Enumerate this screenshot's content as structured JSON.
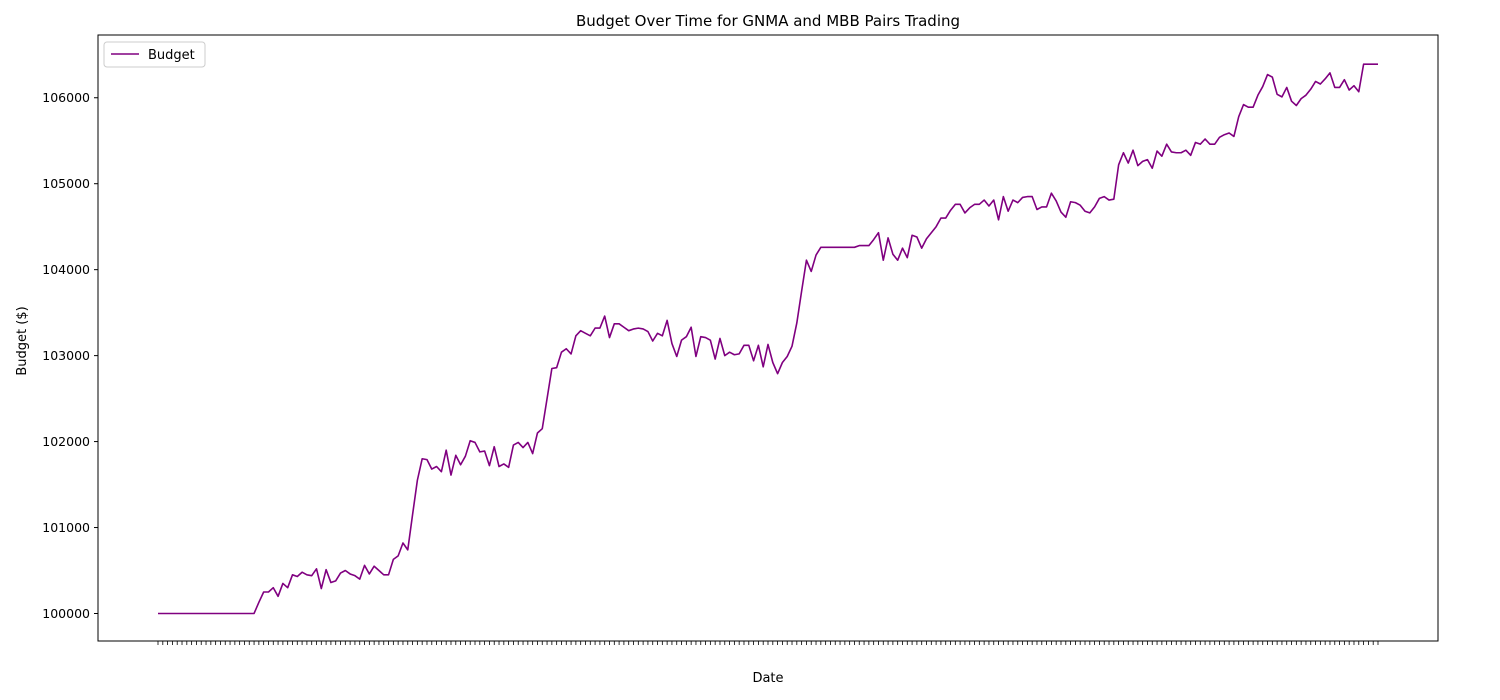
{
  "chart_data": {
    "type": "line",
    "title": "Budget Over Time for GNMA and MBB Pairs Trading",
    "xlabel": "Date",
    "ylabel": "Budget ($)",
    "yticks": [
      100000,
      101000,
      102000,
      103000,
      104000,
      105000,
      106000
    ],
    "ylim": [
      99680,
      106730
    ],
    "grid": false,
    "legend_position": "top-left",
    "series": [
      {
        "name": "Budget",
        "color": "#800080",
        "values": [
          100000,
          100000,
          100000,
          100000,
          100000,
          100000,
          100000,
          100000,
          100000,
          100000,
          100000,
          100000,
          100000,
          100000,
          100000,
          100000,
          100000,
          100000,
          100000,
          100000,
          100000,
          100130,
          100250,
          100250,
          100300,
          100200,
          100350,
          100300,
          100450,
          100430,
          100480,
          100450,
          100440,
          100520,
          100290,
          100510,
          100360,
          100380,
          100470,
          100500,
          100460,
          100440,
          100400,
          100560,
          100460,
          100550,
          100500,
          100450,
          100450,
          100630,
          100670,
          100820,
          100740,
          101150,
          101550,
          101800,
          101790,
          101680,
          101710,
          101650,
          101900,
          101610,
          101840,
          101730,
          101830,
          102010,
          101990,
          101880,
          101890,
          101720,
          101940,
          101710,
          101740,
          101700,
          101960,
          101990,
          101930,
          101990,
          101860,
          102100,
          102150,
          102500,
          102850,
          102860,
          103040,
          103080,
          103020,
          103230,
          103290,
          103260,
          103230,
          103320,
          103320,
          103460,
          103210,
          103370,
          103370,
          103330,
          103290,
          103310,
          103320,
          103310,
          103280,
          103170,
          103260,
          103230,
          103410,
          103140,
          102990,
          103180,
          103220,
          103330,
          102990,
          103220,
          103210,
          103180,
          102960,
          103200,
          103000,
          103040,
          103010,
          103020,
          103120,
          103120,
          102940,
          103120,
          102870,
          103130,
          102920,
          102790,
          102920,
          102990,
          103110,
          103380,
          103750,
          104110,
          103980,
          104170,
          104260,
          104260,
          104260,
          104260,
          104260,
          104260,
          104260,
          104260,
          104280,
          104280,
          104280,
          104350,
          104430,
          104110,
          104370,
          104180,
          104110,
          104250,
          104140,
          104400,
          104380,
          104250,
          104360,
          104430,
          104500,
          104600,
          104600,
          104690,
          104760,
          104760,
          104660,
          104720,
          104760,
          104760,
          104810,
          104740,
          104810,
          104580,
          104850,
          104680,
          104810,
          104780,
          104840,
          104850,
          104850,
          104700,
          104730,
          104730,
          104890,
          104800,
          104670,
          104610,
          104790,
          104780,
          104750,
          104680,
          104660,
          104730,
          104830,
          104850,
          104810,
          104820,
          105220,
          105360,
          105240,
          105390,
          105210,
          105260,
          105280,
          105180,
          105380,
          105320,
          105460,
          105370,
          105360,
          105360,
          105390,
          105330,
          105480,
          105460,
          105520,
          105460,
          105460,
          105540,
          105570,
          105590,
          105550,
          105780,
          105920,
          105890,
          105890,
          106030,
          106130,
          106270,
          106240,
          106040,
          106010,
          106120,
          105960,
          105910,
          105990,
          106030,
          106100,
          106190,
          106160,
          106220,
          106290,
          106120,
          106120,
          106210,
          106090,
          106140,
          106070,
          106390,
          106390,
          106390,
          106390
        ]
      }
    ]
  }
}
